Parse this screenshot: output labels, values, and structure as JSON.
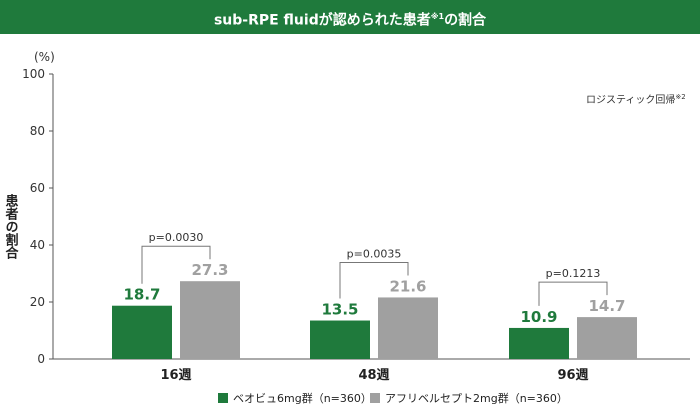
{
  "chart_data": {
    "type": "bar",
    "title": "sub-RPE fluidが認められた患者",
    "title_note": "※1",
    "title_suffix": "の割合",
    "ylabel": "患者の割合",
    "yunit": "(%)",
    "ylim": [
      0,
      100
    ],
    "yticks": [
      0,
      20,
      40,
      60,
      80,
      100
    ],
    "categories": [
      "16週",
      "48週",
      "96週"
    ],
    "series": [
      {
        "name": "ベオビュ6mg群（n=360）",
        "color": "#1f7a3c",
        "values": [
          18.7,
          13.5,
          10.9
        ]
      },
      {
        "name": "アフリベルセプト2mg群（n=360）",
        "color": "#a0a0a0",
        "values": [
          27.3,
          21.6,
          14.7
        ]
      }
    ],
    "pvalues": [
      "p=0.0030",
      "p=0.0035",
      "p=0.1213"
    ],
    "note": "ロジスティック回帰",
    "note_mark": "※2",
    "legend_position": "bottom",
    "grid": false
  }
}
